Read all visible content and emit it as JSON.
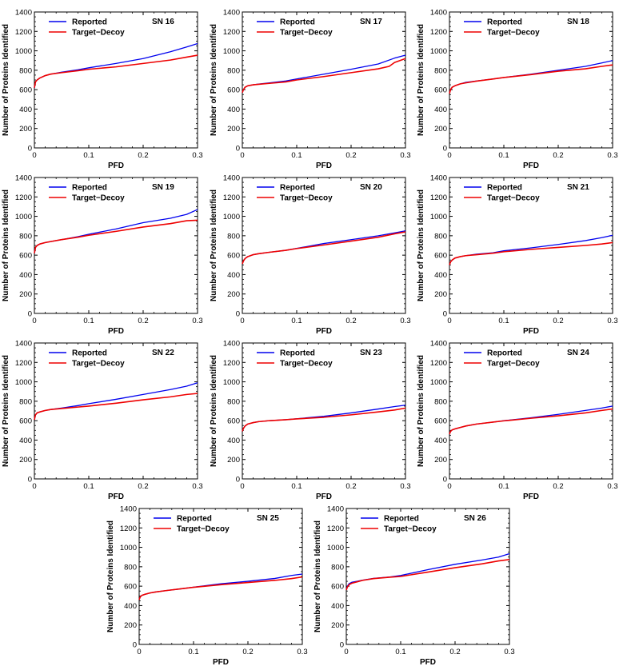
{
  "shared": {
    "xlabel": "PFD",
    "ylabel": "Number of Proteins Identified",
    "xticks": [
      "0",
      "0.1",
      "0.2",
      "0.3"
    ],
    "yticks": [
      "0",
      "200",
      "400",
      "600",
      "800",
      "1000",
      "1200",
      "1400"
    ],
    "xlim": [
      0,
      0.3
    ],
    "ylim": [
      0,
      1400
    ],
    "legend": [
      "Reported",
      "Target−Decoy"
    ],
    "colors": {
      "Reported": "#0000ee",
      "Target-Decoy": "#ee0000"
    }
  },
  "chart_data": [
    {
      "type": "line",
      "title": "SN 16",
      "xlabel": "PFD",
      "ylabel": "Number of Proteins Identified",
      "xlim": [
        0,
        0.3
      ],
      "ylim": [
        0,
        1400
      ],
      "legend_position": "top-left",
      "series": [
        {
          "name": "Reported",
          "x": [
            0,
            0.002,
            0.005,
            0.01,
            0.02,
            0.03,
            0.05,
            0.08,
            0.1,
            0.15,
            0.2,
            0.25,
            0.28,
            0.3
          ],
          "y": [
            620,
            680,
            700,
            720,
            745,
            760,
            780,
            805,
            825,
            870,
            920,
            990,
            1040,
            1075
          ]
        },
        {
          "name": "Target−Decoy",
          "x": [
            0,
            0.002,
            0.005,
            0.01,
            0.02,
            0.03,
            0.05,
            0.08,
            0.1,
            0.15,
            0.2,
            0.25,
            0.28,
            0.3
          ],
          "y": [
            620,
            680,
            700,
            720,
            745,
            760,
            775,
            795,
            810,
            835,
            870,
            905,
            935,
            955
          ]
        }
      ]
    },
    {
      "type": "line",
      "title": "SN 17",
      "xlabel": "PFD",
      "ylabel": "Number of Proteins Identified",
      "xlim": [
        0,
        0.3
      ],
      "ylim": [
        0,
        1400
      ],
      "legend_position": "top-left",
      "series": [
        {
          "name": "Reported",
          "x": [
            0,
            0.002,
            0.005,
            0.01,
            0.02,
            0.03,
            0.05,
            0.08,
            0.1,
            0.15,
            0.2,
            0.25,
            0.28,
            0.3
          ],
          "y": [
            570,
            600,
            625,
            640,
            650,
            658,
            670,
            690,
            710,
            760,
            810,
            865,
            925,
            955
          ]
        },
        {
          "name": "Target−Decoy",
          "x": [
            0,
            0.002,
            0.005,
            0.01,
            0.02,
            0.03,
            0.05,
            0.08,
            0.1,
            0.15,
            0.2,
            0.25,
            0.27,
            0.28,
            0.3
          ],
          "y": [
            570,
            600,
            625,
            640,
            650,
            655,
            665,
            680,
            700,
            735,
            775,
            815,
            840,
            880,
            920
          ]
        }
      ]
    },
    {
      "type": "line",
      "title": "SN 18",
      "xlabel": "PFD",
      "ylabel": "Number of Proteins Identified",
      "xlim": [
        0,
        0.3
      ],
      "ylim": [
        0,
        1400
      ],
      "legend_position": "top-left",
      "series": [
        {
          "name": "Reported",
          "x": [
            0,
            0.002,
            0.005,
            0.01,
            0.02,
            0.03,
            0.05,
            0.08,
            0.1,
            0.15,
            0.2,
            0.25,
            0.28,
            0.3
          ],
          "y": [
            560,
            600,
            625,
            640,
            660,
            675,
            690,
            710,
            725,
            760,
            800,
            840,
            875,
            900
          ]
        },
        {
          "name": "Target−Decoy",
          "x": [
            0,
            0.002,
            0.005,
            0.01,
            0.02,
            0.03,
            0.05,
            0.08,
            0.1,
            0.15,
            0.2,
            0.25,
            0.28,
            0.3
          ],
          "y": [
            560,
            600,
            625,
            640,
            660,
            670,
            688,
            710,
            725,
            755,
            790,
            815,
            840,
            855
          ]
        }
      ]
    },
    {
      "type": "line",
      "title": "SN 19",
      "xlabel": "PFD",
      "ylabel": "Number of Proteins Identified",
      "xlim": [
        0,
        0.3
      ],
      "ylim": [
        0,
        1400
      ],
      "legend_position": "top-left",
      "series": [
        {
          "name": "Reported",
          "x": [
            0,
            0.002,
            0.005,
            0.01,
            0.02,
            0.03,
            0.05,
            0.08,
            0.1,
            0.15,
            0.2,
            0.25,
            0.28,
            0.3
          ],
          "y": [
            620,
            680,
            700,
            715,
            730,
            740,
            760,
            790,
            815,
            870,
            935,
            980,
            1020,
            1070
          ]
        },
        {
          "name": "Target−Decoy",
          "x": [
            0,
            0.002,
            0.005,
            0.01,
            0.02,
            0.03,
            0.05,
            0.08,
            0.1,
            0.15,
            0.2,
            0.25,
            0.28,
            0.3
          ],
          "y": [
            620,
            680,
            700,
            715,
            730,
            740,
            760,
            785,
            805,
            845,
            890,
            925,
            955,
            960
          ]
        }
      ]
    },
    {
      "type": "line",
      "title": "SN 20",
      "xlabel": "PFD",
      "ylabel": "Number of Proteins Identified",
      "xlim": [
        0,
        0.3
      ],
      "ylim": [
        0,
        1400
      ],
      "legend_position": "top-left",
      "series": [
        {
          "name": "Reported",
          "x": [
            0,
            0.002,
            0.005,
            0.01,
            0.02,
            0.03,
            0.05,
            0.08,
            0.1,
            0.15,
            0.2,
            0.25,
            0.28,
            0.3
          ],
          "y": [
            510,
            540,
            565,
            585,
            605,
            615,
            630,
            650,
            670,
            720,
            760,
            800,
            830,
            850
          ]
        },
        {
          "name": "Target−Decoy",
          "x": [
            0,
            0.002,
            0.005,
            0.01,
            0.02,
            0.03,
            0.05,
            0.08,
            0.1,
            0.15,
            0.2,
            0.25,
            0.28,
            0.3
          ],
          "y": [
            510,
            540,
            565,
            585,
            605,
            615,
            630,
            650,
            668,
            705,
            745,
            785,
            820,
            840
          ]
        }
      ]
    },
    {
      "type": "line",
      "title": "SN 21",
      "xlabel": "PFD",
      "ylabel": "Number of Proteins Identified",
      "xlim": [
        0,
        0.3
      ],
      "ylim": [
        0,
        1400
      ],
      "legend_position": "top-left",
      "series": [
        {
          "name": "Reported",
          "x": [
            0,
            0.002,
            0.005,
            0.01,
            0.02,
            0.03,
            0.05,
            0.08,
            0.1,
            0.15,
            0.2,
            0.25,
            0.28,
            0.3
          ],
          "y": [
            500,
            530,
            550,
            570,
            585,
            595,
            610,
            625,
            645,
            675,
            710,
            750,
            780,
            805
          ]
        },
        {
          "name": "Target−Decoy",
          "x": [
            0,
            0.002,
            0.005,
            0.01,
            0.02,
            0.03,
            0.05,
            0.08,
            0.1,
            0.15,
            0.2,
            0.25,
            0.28,
            0.3
          ],
          "y": [
            500,
            530,
            550,
            570,
            585,
            595,
            605,
            620,
            635,
            660,
            680,
            700,
            715,
            730
          ]
        }
      ]
    },
    {
      "type": "line",
      "title": "SN 22",
      "xlabel": "PFD",
      "ylabel": "Number of Proteins Identified",
      "xlim": [
        0,
        0.3
      ],
      "ylim": [
        0,
        1400
      ],
      "legend_position": "top-left",
      "series": [
        {
          "name": "Reported",
          "x": [
            0,
            0.002,
            0.005,
            0.01,
            0.02,
            0.03,
            0.05,
            0.08,
            0.1,
            0.15,
            0.2,
            0.25,
            0.28,
            0.3
          ],
          "y": [
            610,
            660,
            680,
            690,
            705,
            715,
            730,
            755,
            775,
            820,
            870,
            920,
            955,
            990
          ]
        },
        {
          "name": "Target−Decoy",
          "x": [
            0,
            0.002,
            0.005,
            0.01,
            0.02,
            0.03,
            0.05,
            0.08,
            0.1,
            0.15,
            0.2,
            0.25,
            0.28,
            0.3
          ],
          "y": [
            610,
            660,
            680,
            690,
            705,
            715,
            725,
            740,
            750,
            780,
            815,
            845,
            870,
            880
          ]
        }
      ]
    },
    {
      "type": "line",
      "title": "SN 23",
      "xlabel": "PFD",
      "ylabel": "Number of Proteins Identified",
      "xlim": [
        0,
        0.3
      ],
      "ylim": [
        0,
        1400
      ],
      "legend_position": "top-left",
      "series": [
        {
          "name": "Reported",
          "x": [
            0,
            0.002,
            0.005,
            0.01,
            0.02,
            0.03,
            0.05,
            0.08,
            0.1,
            0.15,
            0.2,
            0.25,
            0.28,
            0.3
          ],
          "y": [
            490,
            520,
            545,
            565,
            580,
            590,
            600,
            610,
            620,
            645,
            680,
            720,
            745,
            760
          ]
        },
        {
          "name": "Target−Decoy",
          "x": [
            0,
            0.002,
            0.005,
            0.01,
            0.02,
            0.03,
            0.05,
            0.08,
            0.1,
            0.15,
            0.2,
            0.25,
            0.28,
            0.3
          ],
          "y": [
            490,
            520,
            545,
            565,
            580,
            590,
            600,
            610,
            618,
            635,
            660,
            690,
            710,
            730
          ]
        }
      ]
    },
    {
      "type": "line",
      "title": "SN 24",
      "xlabel": "PFD",
      "ylabel": "Number of Proteins Identified",
      "xlim": [
        0,
        0.3
      ],
      "ylim": [
        0,
        1400
      ],
      "legend_position": "top-left",
      "series": [
        {
          "name": "Reported",
          "x": [
            0,
            0.002,
            0.005,
            0.01,
            0.02,
            0.03,
            0.05,
            0.08,
            0.1,
            0.15,
            0.2,
            0.25,
            0.28,
            0.3
          ],
          "y": [
            460,
            490,
            505,
            515,
            530,
            545,
            565,
            585,
            600,
            630,
            665,
            705,
            730,
            750
          ]
        },
        {
          "name": "Target−Decoy",
          "x": [
            0,
            0.002,
            0.005,
            0.01,
            0.02,
            0.03,
            0.05,
            0.08,
            0.1,
            0.15,
            0.2,
            0.25,
            0.28,
            0.3
          ],
          "y": [
            460,
            490,
            505,
            515,
            530,
            545,
            565,
            585,
            598,
            625,
            650,
            680,
            705,
            720
          ]
        }
      ]
    },
    {
      "type": "line",
      "title": "SN 25",
      "xlabel": "PFD",
      "ylabel": "Number of Proteins Identified",
      "xlim": [
        0,
        0.3
      ],
      "ylim": [
        0,
        1400
      ],
      "legend_position": "top-left",
      "series": [
        {
          "name": "Reported",
          "x": [
            0,
            0.002,
            0.005,
            0.01,
            0.02,
            0.03,
            0.05,
            0.08,
            0.1,
            0.15,
            0.2,
            0.25,
            0.28,
            0.3
          ],
          "y": [
            460,
            490,
            505,
            515,
            530,
            540,
            555,
            575,
            590,
            625,
            650,
            680,
            710,
            725
          ]
        },
        {
          "name": "Target−Decoy",
          "x": [
            0,
            0.002,
            0.005,
            0.01,
            0.02,
            0.03,
            0.05,
            0.08,
            0.1,
            0.15,
            0.2,
            0.25,
            0.28,
            0.3
          ],
          "y": [
            460,
            490,
            505,
            515,
            530,
            540,
            555,
            575,
            588,
            615,
            638,
            660,
            678,
            695
          ]
        }
      ]
    },
    {
      "type": "line",
      "title": "SN 26",
      "xlabel": "PFD",
      "ylabel": "Number of Proteins Identified",
      "xlim": [
        0,
        0.3
      ],
      "ylim": [
        0,
        1400
      ],
      "legend_position": "top-left",
      "series": [
        {
          "name": "Reported",
          "x": [
            0,
            0.002,
            0.005,
            0.01,
            0.02,
            0.03,
            0.05,
            0.08,
            0.1,
            0.15,
            0.2,
            0.25,
            0.28,
            0.3
          ],
          "y": [
            560,
            600,
            625,
            640,
            650,
            662,
            680,
            695,
            710,
            770,
            825,
            870,
            900,
            935
          ]
        },
        {
          "name": "Target−Decoy",
          "x": [
            0,
            0.002,
            0.005,
            0.01,
            0.02,
            0.03,
            0.05,
            0.08,
            0.1,
            0.15,
            0.2,
            0.25,
            0.28,
            0.3
          ],
          "y": [
            560,
            590,
            615,
            630,
            645,
            660,
            678,
            692,
            700,
            745,
            790,
            830,
            860,
            875
          ]
        }
      ]
    }
  ]
}
